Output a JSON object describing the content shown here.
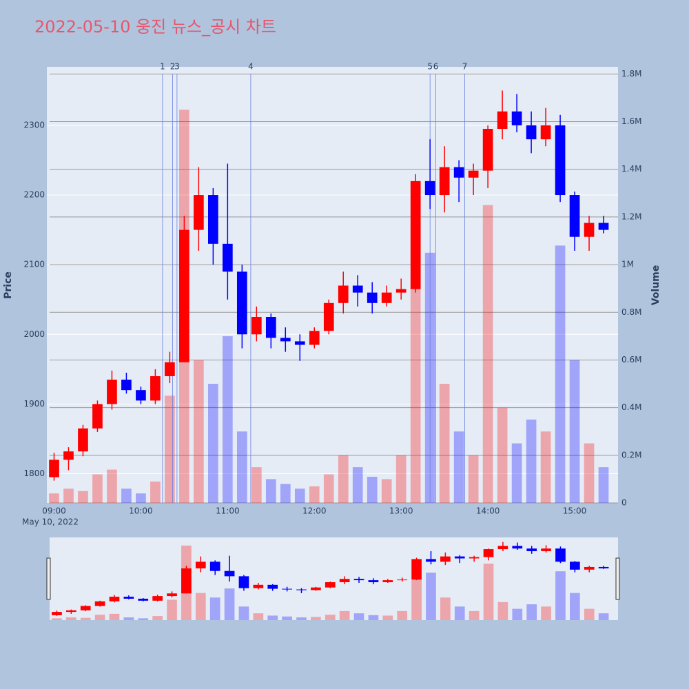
{
  "chart_data": {
    "type": "candlestick",
    "title": "2022-05-10 웅진 뉴스_공시 차트",
    "y_label": "Price",
    "y2_label": "Volume",
    "x_sublabel": "May 10, 2022",
    "x": [
      "09:00",
      "09:10",
      "09:20",
      "09:30",
      "09:40",
      "09:50",
      "10:00",
      "10:10",
      "10:20",
      "10:30",
      "10:40",
      "10:50",
      "11:00",
      "11:10",
      "11:20",
      "11:30",
      "11:40",
      "11:50",
      "12:00",
      "12:10",
      "12:20",
      "12:30",
      "12:40",
      "12:50",
      "13:00",
      "13:10",
      "13:20",
      "13:30",
      "13:40",
      "13:50",
      "14:00",
      "14:10",
      "14:20",
      "14:30",
      "14:40",
      "14:50",
      "15:00",
      "15:10",
      "15:20"
    ],
    "open": [
      1795,
      1820,
      1832,
      1865,
      1900,
      1935,
      1920,
      1905,
      1940,
      1960,
      2150,
      2200,
      2130,
      2090,
      2000,
      2025,
      1995,
      1990,
      1985,
      2005,
      2045,
      2070,
      2060,
      2045,
      2060,
      2065,
      2220,
      2200,
      2240,
      2225,
      2235,
      2295,
      2320,
      2300,
      2280,
      2300,
      2200,
      2140,
      2160
    ],
    "high": [
      1830,
      1838,
      1870,
      1905,
      1948,
      1945,
      1925,
      1950,
      1975,
      2170,
      2240,
      2210,
      2245,
      2100,
      2040,
      2030,
      2010,
      2000,
      2010,
      2050,
      2090,
      2085,
      2075,
      2070,
      2080,
      2230,
      2280,
      2270,
      2250,
      2245,
      2300,
      2350,
      2345,
      2320,
      2325,
      2315,
      2205,
      2170,
      2170
    ],
    "low": [
      1790,
      1805,
      1825,
      1860,
      1892,
      1915,
      1900,
      1900,
      1930,
      1960,
      2120,
      2100,
      2050,
      1980,
      1990,
      1980,
      1975,
      1962,
      1980,
      2000,
      2030,
      2040,
      2030,
      2040,
      2050,
      2060,
      2180,
      2175,
      2190,
      2200,
      2210,
      2280,
      2290,
      2260,
      2270,
      2190,
      2120,
      2120,
      2145
    ],
    "close": [
      1820,
      1832,
      1865,
      1900,
      1935,
      1920,
      1905,
      1940,
      1960,
      2150,
      2200,
      2130,
      2090,
      2000,
      2025,
      1995,
      1990,
      1985,
      2005,
      2045,
      2070,
      2060,
      2045,
      2060,
      2065,
      2220,
      2200,
      2240,
      2225,
      2235,
      2295,
      2320,
      2300,
      2280,
      2300,
      2200,
      2140,
      2160,
      2150
    ],
    "volume": [
      40000,
      60000,
      50000,
      120000,
      140000,
      60000,
      40000,
      90000,
      450000,
      1650000,
      600000,
      500000,
      700000,
      300000,
      150000,
      100000,
      80000,
      60000,
      70000,
      120000,
      200000,
      150000,
      110000,
      100000,
      200000,
      900000,
      1050000,
      500000,
      300000,
      200000,
      1250000,
      400000,
      250000,
      350000,
      300000,
      1080000,
      600000,
      250000,
      150000
    ],
    "increasing_color": "#ff0000",
    "decreasing_color": "#0000ff",
    "xlim": [
      "08:55",
      "15:30"
    ],
    "xticks": [
      "09:00",
      "10:00",
      "11:00",
      "12:00",
      "13:00",
      "14:00",
      "15:00"
    ],
    "ylim": [
      1758,
      2384
    ],
    "yticks": [
      1800,
      1900,
      2000,
      2100,
      2200,
      2300
    ],
    "y2lim": [
      0,
      1830000
    ],
    "y2ticks": [
      0,
      {
        "value": 200000,
        "label": "0.2M"
      },
      {
        "value": 400000,
        "label": "0.4M"
      },
      {
        "value": 600000,
        "label": "0.6M"
      },
      {
        "value": 800000,
        "label": "0.8M"
      },
      {
        "value": 1000000,
        "label": "1M"
      },
      {
        "value": 1200000,
        "label": "1.2M"
      },
      {
        "value": 1400000,
        "label": "1.4M"
      },
      {
        "value": 1600000,
        "label": "1.6M"
      },
      {
        "value": 1800000,
        "label": "1.8M"
      }
    ],
    "events": [
      {
        "label": "1",
        "x": "10:15"
      },
      {
        "label": "2",
        "x": "10:22"
      },
      {
        "label": "3",
        "x": "10:25"
      },
      {
        "label": "4",
        "x": "11:16"
      },
      {
        "label": "5",
        "x": "13:20"
      },
      {
        "label": "6",
        "x": "13:24"
      },
      {
        "label": "7",
        "x": "13:44"
      }
    ]
  }
}
